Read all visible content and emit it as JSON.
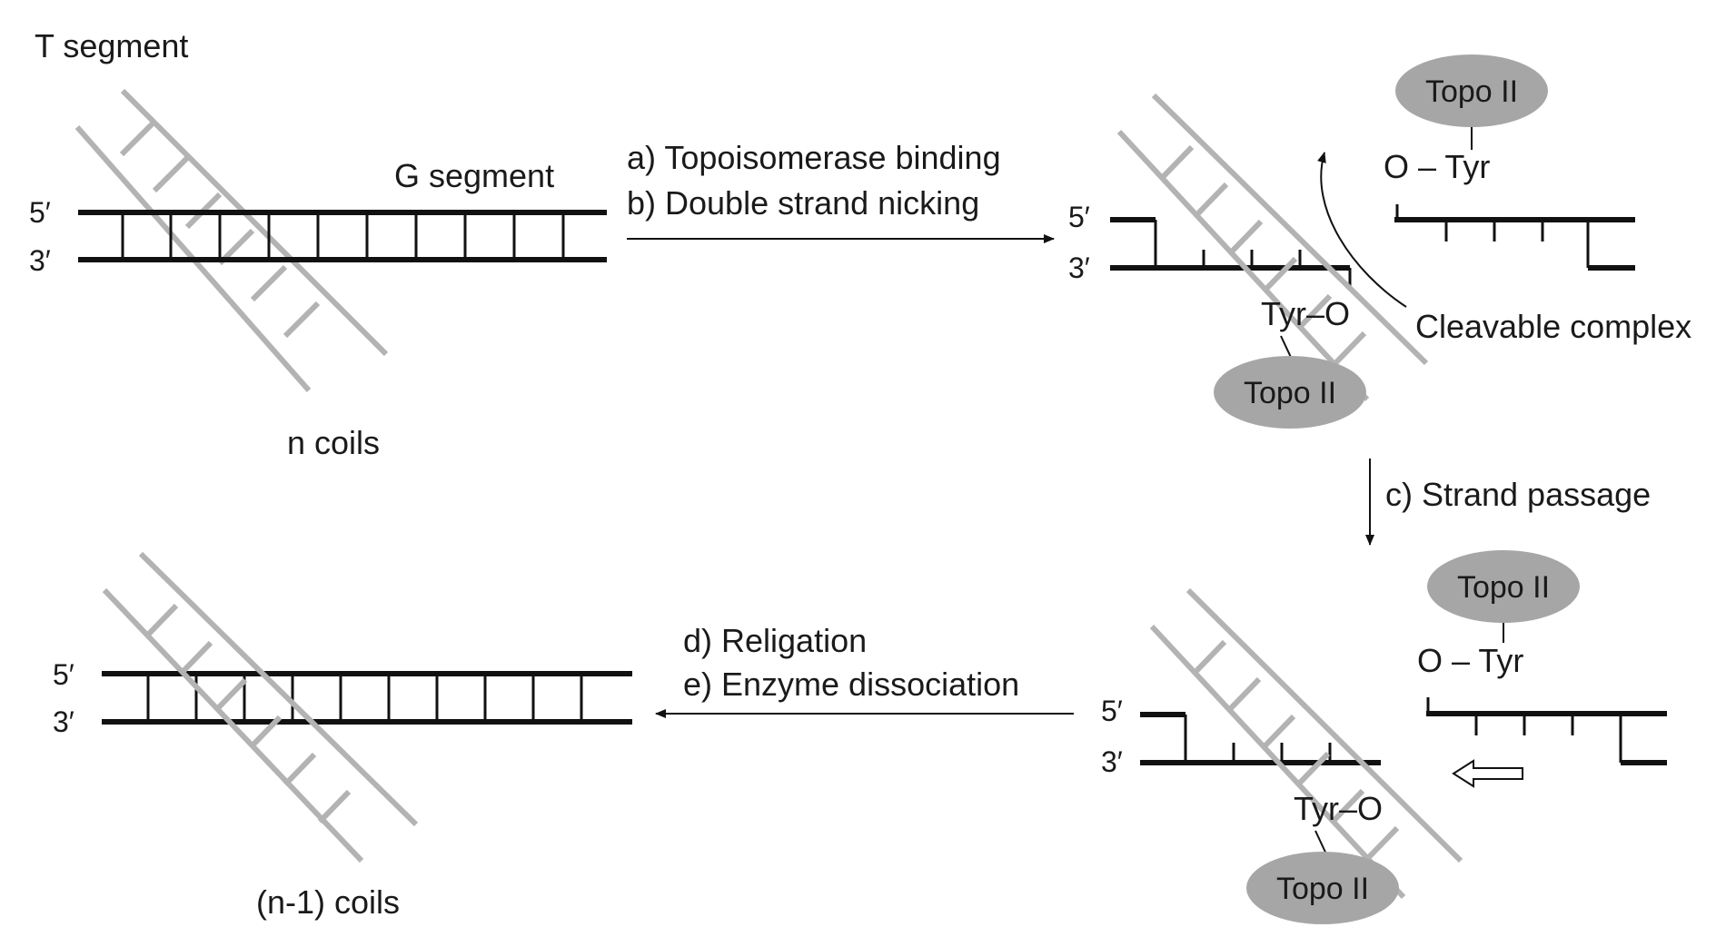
{
  "colors": {
    "strand": "#111111",
    "t_segment": "#b3b3b3",
    "enzyme_fill": "#a6a6a6",
    "background": "#ffffff"
  },
  "labels": {
    "t_segment": "T segment",
    "g_segment": "G segment",
    "five_prime": "5′",
    "three_prime": "3′",
    "n_coils": "n coils",
    "n_minus_1_coils": "(n-1) coils",
    "topo": "Topo II",
    "o_tyr": "O – Tyr",
    "tyr_o": "Tyr–O",
    "cleavable_complex": "Cleavable complex"
  },
  "steps": {
    "a": "a) Topoisomerase binding",
    "b": "b) Double strand nicking",
    "c": "c) Strand passage",
    "d": "d) Religation",
    "e": "e) Enzyme dissociation"
  }
}
